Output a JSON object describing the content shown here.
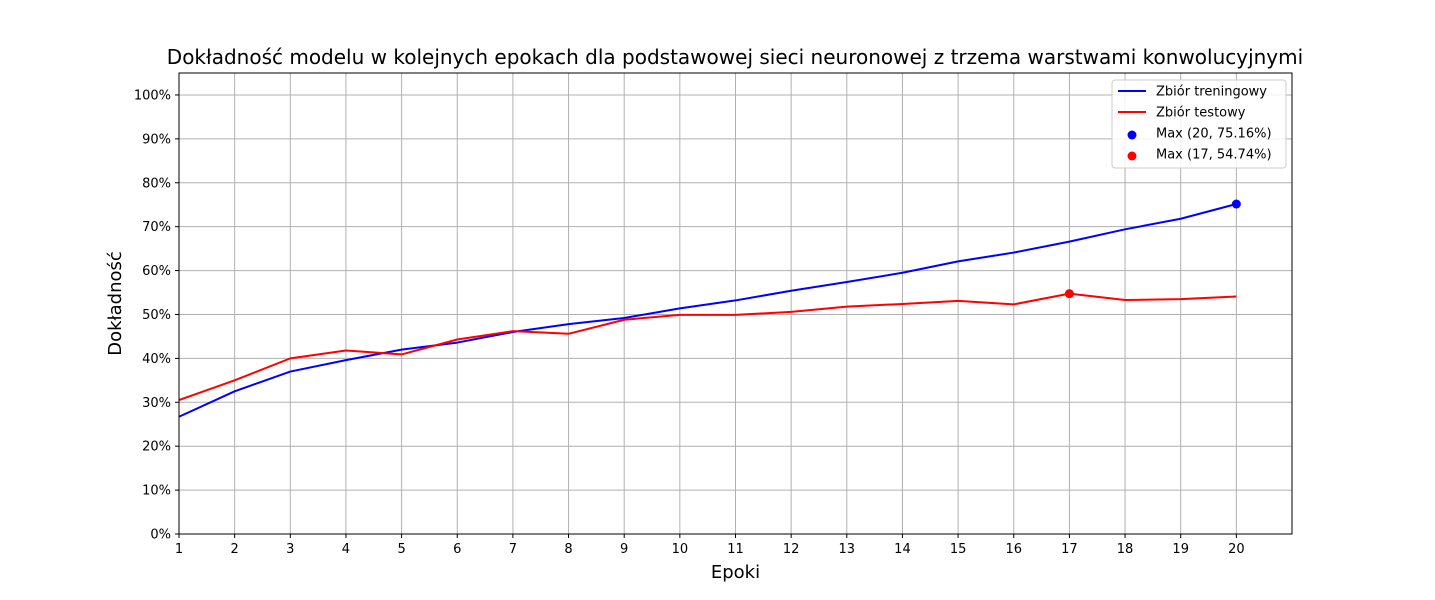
{
  "chart_data": {
    "type": "line",
    "title": "Dokładność modelu w kolejnych epokach dla podstawowej sieci neuronowej z trzema warstwami konwolucyjnymi",
    "xlabel": "Epoki",
    "ylabel": "Dokładność",
    "x": [
      1,
      2,
      3,
      4,
      5,
      6,
      7,
      8,
      9,
      10,
      11,
      12,
      13,
      14,
      15,
      16,
      17,
      18,
      19,
      20
    ],
    "xlim": [
      1,
      21
    ],
    "ylim": [
      0,
      105
    ],
    "y_ticks": [
      0,
      10,
      20,
      30,
      40,
      50,
      60,
      70,
      80,
      90,
      100
    ],
    "y_tick_format": "percent",
    "grid": true,
    "legend_position": "top-right",
    "series": [
      {
        "name": "Zbiór treningowy",
        "color": "#0000ff",
        "values": [
          26.7,
          32.5,
          37.0,
          39.6,
          42.0,
          43.6,
          46.0,
          47.8,
          49.2,
          51.4,
          53.2,
          55.4,
          57.4,
          59.5,
          62.1,
          64.1,
          66.6,
          69.4,
          71.8,
          75.16
        ]
      },
      {
        "name": "Zbiór testowy",
        "color": "#ff0000",
        "values": [
          30.5,
          35.0,
          40.0,
          41.8,
          40.9,
          44.3,
          46.2,
          45.6,
          48.8,
          49.9,
          49.9,
          50.6,
          51.8,
          52.4,
          53.1,
          52.3,
          54.74,
          53.3,
          53.5,
          54.1
        ]
      }
    ],
    "markers": [
      {
        "label": "Max (20, 75.16%)",
        "x": 20,
        "y": 75.16,
        "color": "#0000ff"
      },
      {
        "label": "Max (17, 54.74%)",
        "x": 17,
        "y": 54.74,
        "color": "#ff0000"
      }
    ]
  }
}
